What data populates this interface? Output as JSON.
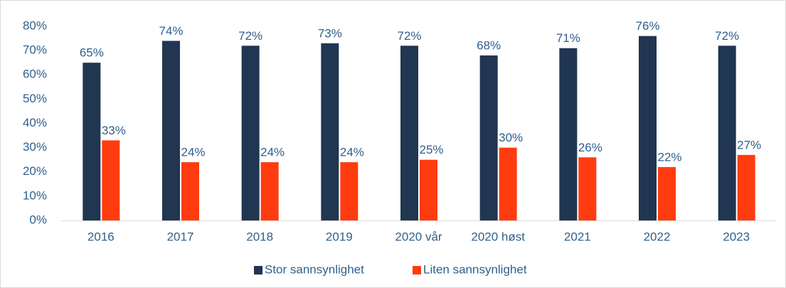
{
  "chart_data": {
    "type": "bar",
    "categories": [
      "2016",
      "2017",
      "2018",
      "2019",
      "2020 vår",
      "2020 høst",
      "2021",
      "2022",
      "2023"
    ],
    "series": [
      {
        "name": "Stor sannsynlighet",
        "color": "#203651",
        "values": [
          65,
          74,
          72,
          73,
          72,
          68,
          71,
          76,
          72
        ],
        "value_labels": [
          "65%",
          "74%",
          "72%",
          "73%",
          "72%",
          "68%",
          "71%",
          "76%",
          "72%"
        ]
      },
      {
        "name": "Liten sannsynlighet",
        "color": "#ff3c0f",
        "values": [
          33,
          24,
          24,
          24,
          25,
          30,
          26,
          22,
          27
        ],
        "value_labels": [
          "33%",
          "24%",
          "24%",
          "24%",
          "25%",
          "30%",
          "26%",
          "22%",
          "27%"
        ]
      }
    ],
    "ylim": [
      0,
      80
    ],
    "yticks": [
      {
        "value": 0,
        "label": "0%"
      },
      {
        "value": 10,
        "label": "10%"
      },
      {
        "value": 20,
        "label": "20%"
      },
      {
        "value": 30,
        "label": "30%"
      },
      {
        "value": 40,
        "label": "40%"
      },
      {
        "value": 50,
        "label": "50%"
      },
      {
        "value": 60,
        "label": "60%"
      },
      {
        "value": 70,
        "label": "70%"
      },
      {
        "value": 80,
        "label": "80%"
      }
    ],
    "grid": false,
    "legend": "bottom"
  }
}
